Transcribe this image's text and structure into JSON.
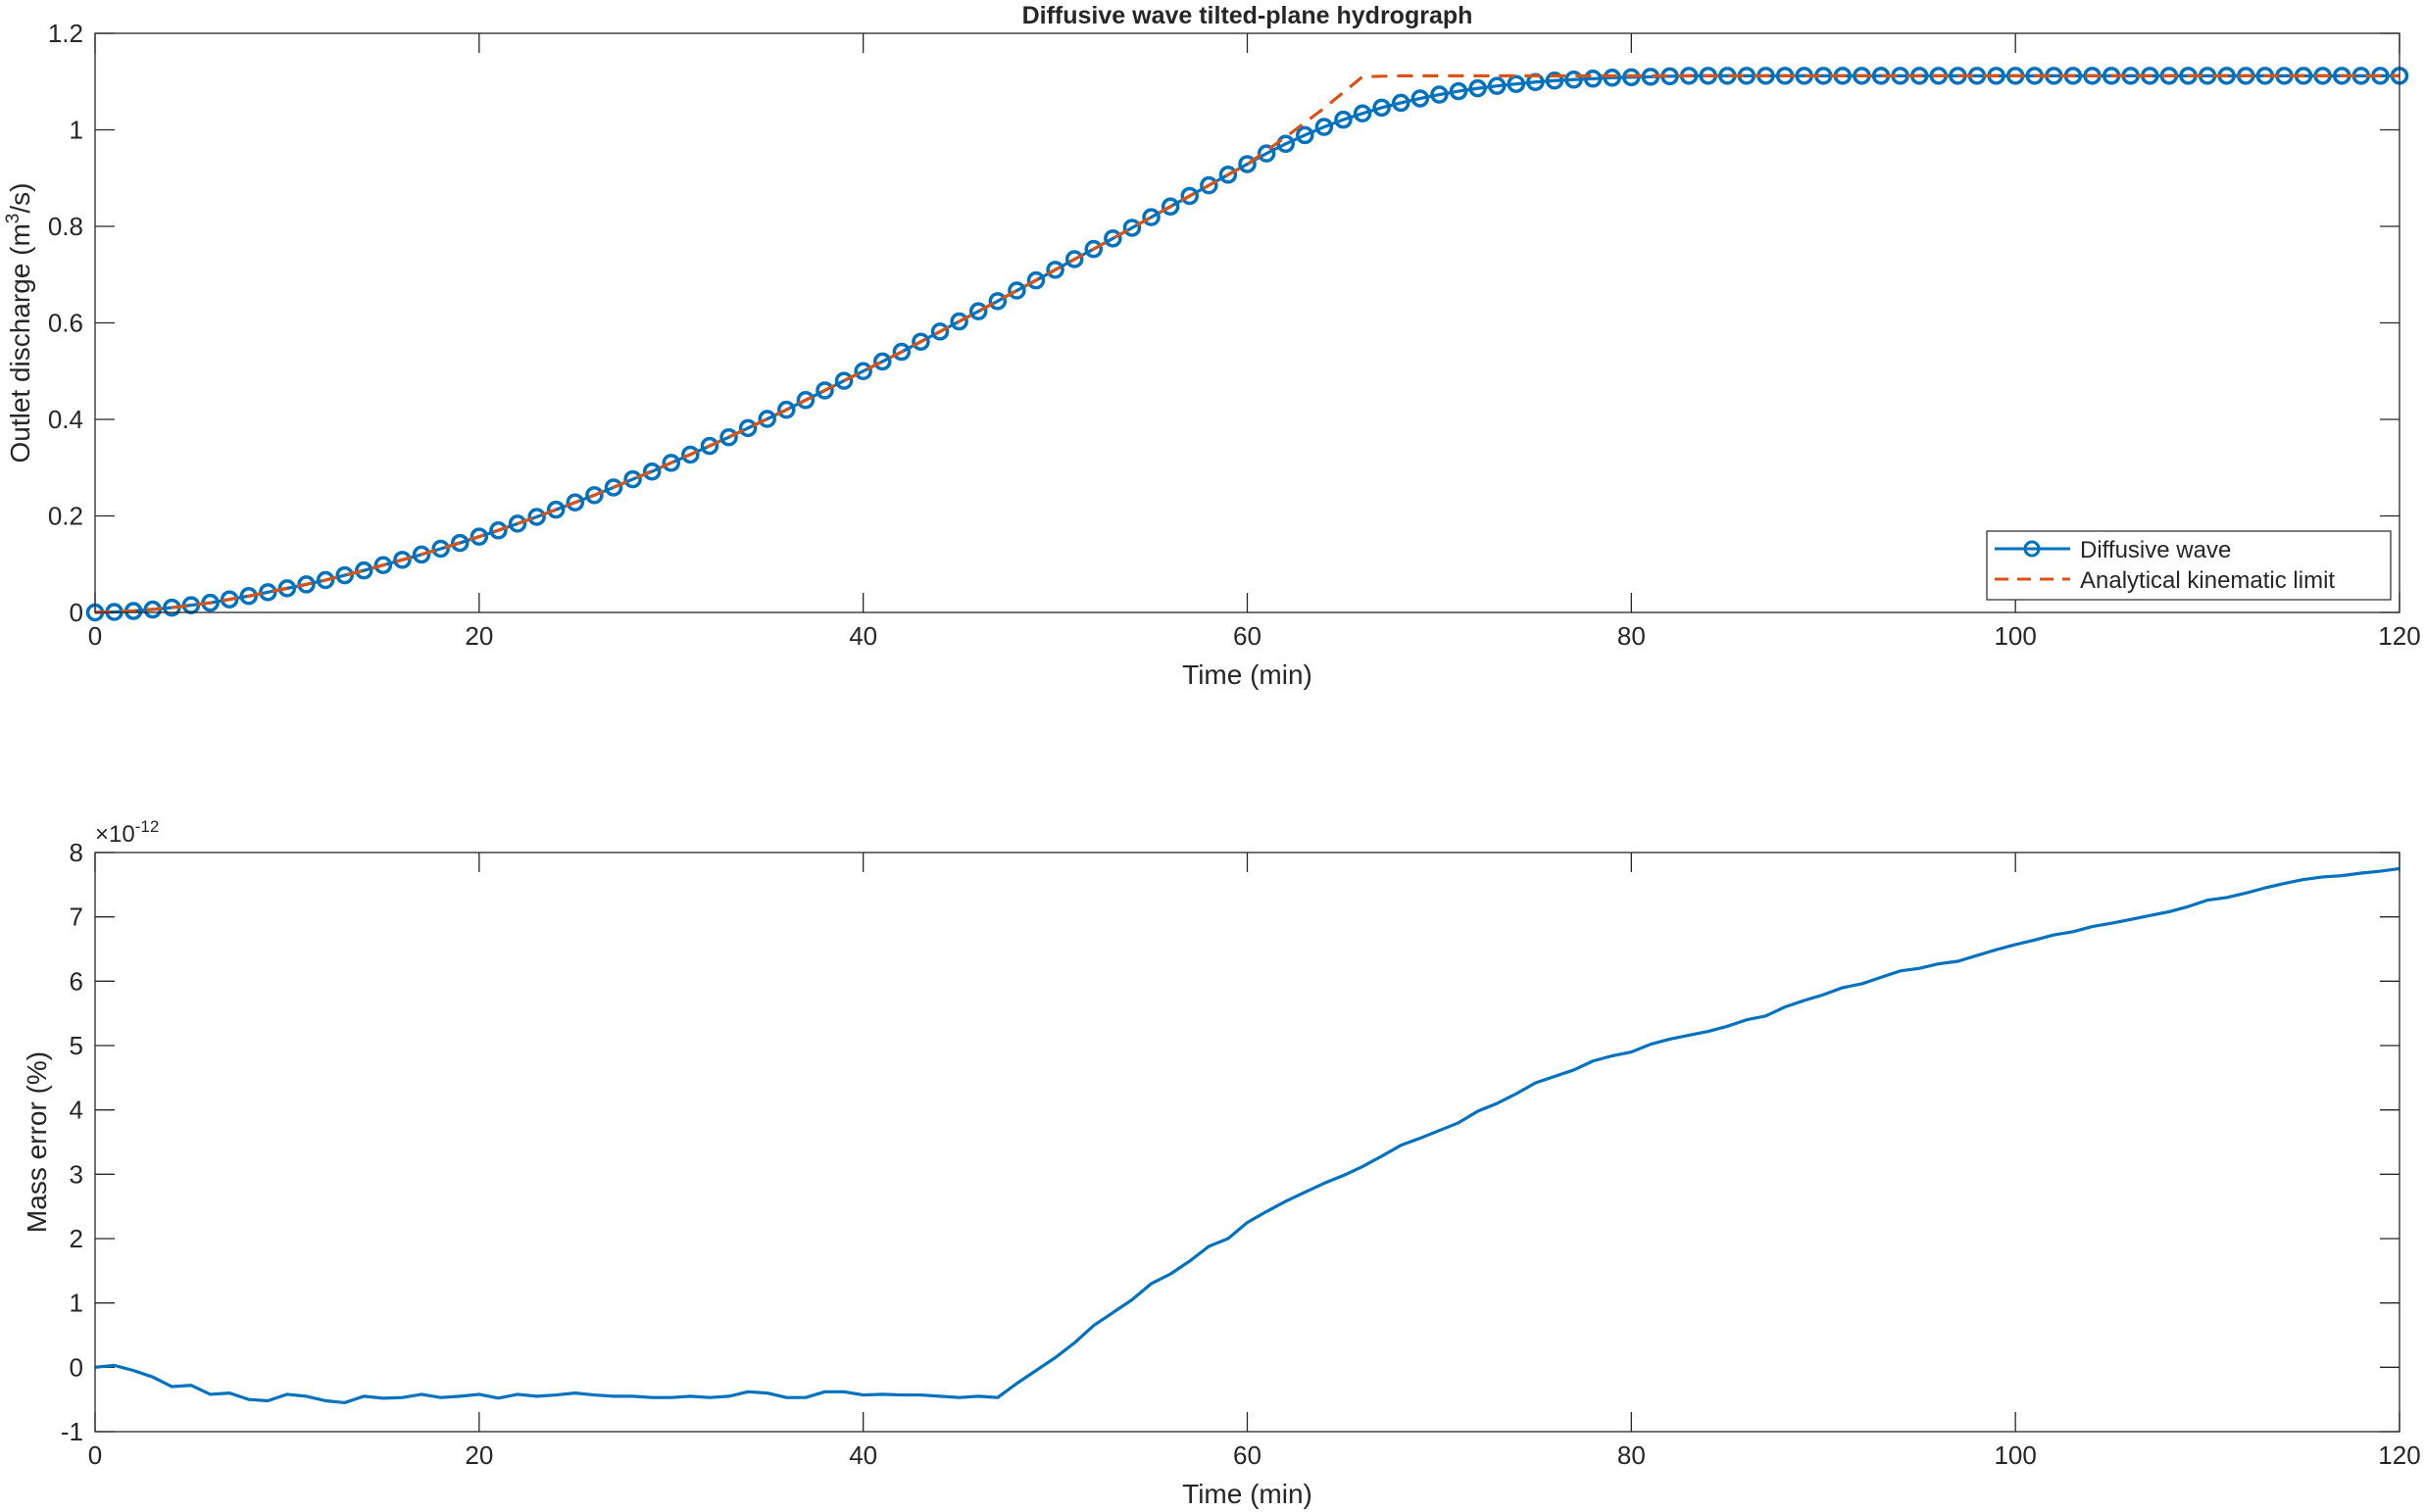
{
  "figure": {
    "colors": {
      "blue": "#0072BD",
      "orange": "#D95319",
      "axis": "#262626"
    }
  },
  "chart_data": [
    {
      "type": "line",
      "title": "Diffusive wave tilted-plane hydrograph",
      "xlabel": "Time (min)",
      "ylabel": "Outlet discharge (m³/s)",
      "ylabel_parts": {
        "pre": "Outlet discharge (m",
        "sup": "3",
        "post": "/s)"
      },
      "xlim": [
        0,
        120
      ],
      "ylim": [
        0,
        1.2
      ],
      "xticks": [
        0,
        20,
        40,
        60,
        80,
        100,
        120
      ],
      "yticks": [
        0,
        0.2,
        0.4,
        0.6,
        0.8,
        1,
        1.2
      ],
      "xtick_labels": [
        "0",
        "20",
        "40",
        "60",
        "80",
        "100",
        "120"
      ],
      "ytick_labels": [
        "0",
        "0.2",
        "0.4",
        "0.6",
        "0.8",
        "1",
        "1.2"
      ],
      "grid": false,
      "legend_position": "bottom-right",
      "series": [
        {
          "name": "Diffusive wave",
          "color": "#0072BD",
          "style": "solid-circle-markers",
          "x": [
            0,
            1,
            2,
            3,
            4,
            5,
            6,
            7,
            8,
            9,
            10,
            11,
            12,
            13,
            14,
            15,
            16,
            17,
            18,
            19,
            20,
            21,
            22,
            23,
            24,
            25,
            26,
            27,
            28,
            29,
            30,
            31,
            32,
            33,
            34,
            35,
            36,
            37,
            38,
            39,
            40,
            41,
            42,
            43,
            44,
            45,
            46,
            47,
            48,
            49,
            50,
            51,
            52,
            53,
            54,
            55,
            56,
            57,
            58,
            59,
            60,
            61,
            62,
            63,
            64,
            65,
            66,
            67,
            68,
            69,
            70,
            71,
            72,
            73,
            74,
            75,
            76,
            77,
            78,
            79,
            80,
            81,
            82,
            83,
            84,
            85,
            86,
            87,
            88,
            89,
            90,
            91,
            92,
            93,
            94,
            95,
            96,
            97,
            98,
            99,
            100,
            101,
            102,
            103,
            104,
            105,
            106,
            107,
            108,
            109,
            110,
            111,
            112,
            113,
            114,
            115,
            116,
            117,
            118,
            119,
            120
          ],
          "y": [
            0,
            0.001,
            0.003,
            0.006,
            0.01,
            0.015,
            0.02,
            0.027,
            0.034,
            0.042,
            0.05,
            0.058,
            0.067,
            0.077,
            0.087,
            0.098,
            0.109,
            0.12,
            0.132,
            0.144,
            0.157,
            0.17,
            0.184,
            0.198,
            0.213,
            0.228,
            0.243,
            0.259,
            0.276,
            0.292,
            0.31,
            0.327,
            0.345,
            0.363,
            0.382,
            0.401,
            0.42,
            0.44,
            0.46,
            0.48,
            0.5,
            0.52,
            0.54,
            0.561,
            0.582,
            0.603,
            0.624,
            0.645,
            0.667,
            0.688,
            0.71,
            0.732,
            0.753,
            0.775,
            0.797,
            0.819,
            0.841,
            0.863,
            0.885,
            0.907,
            0.929,
            0.951,
            0.971,
            0.989,
            1.006,
            1.021,
            1.034,
            1.046,
            1.056,
            1.065,
            1.073,
            1.08,
            1.086,
            1.091,
            1.095,
            1.099,
            1.102,
            1.104,
            1.106,
            1.108,
            1.109,
            1.11,
            1.111,
            1.112,
            1.112,
            1.112,
            1.112,
            1.112,
            1.112,
            1.112,
            1.112,
            1.112,
            1.112,
            1.112,
            1.112,
            1.112,
            1.112,
            1.112,
            1.112,
            1.112,
            1.112,
            1.112,
            1.112,
            1.112,
            1.112,
            1.112,
            1.112,
            1.112,
            1.112,
            1.112,
            1.112,
            1.112,
            1.112,
            1.112,
            1.112,
            1.112,
            1.112,
            1.112,
            1.112,
            1.112,
            1.112
          ]
        },
        {
          "name": "Analytical kinematic limit",
          "color": "#D95319",
          "style": "dashed",
          "x": [
            0,
            2,
            4,
            6,
            8,
            10,
            12,
            14,
            16,
            18,
            20,
            22,
            24,
            26,
            28,
            30,
            32,
            34,
            36,
            38,
            40,
            42,
            44,
            46,
            48,
            50,
            52,
            54,
            56,
            58,
            60,
            62,
            64,
            66,
            68,
            70,
            75,
            80,
            85,
            90,
            100,
            110,
            120
          ],
          "y": [
            0,
            0.003,
            0.01,
            0.02,
            0.034,
            0.05,
            0.067,
            0.087,
            0.109,
            0.132,
            0.157,
            0.184,
            0.213,
            0.243,
            0.276,
            0.31,
            0.345,
            0.382,
            0.42,
            0.46,
            0.5,
            0.54,
            0.582,
            0.624,
            0.667,
            0.71,
            0.753,
            0.797,
            0.841,
            0.885,
            0.929,
            0.985,
            1.045,
            1.11,
            1.112,
            1.112,
            1.112,
            1.112,
            1.112,
            1.112,
            1.112,
            1.112,
            1.112
          ]
        }
      ]
    },
    {
      "type": "line",
      "title": "",
      "xlabel": "Time (min)",
      "ylabel": "Mass error (%)",
      "exponent_label": {
        "base": "×10",
        "exp": "-12"
      },
      "xlim": [
        0,
        120
      ],
      "ylim": [
        -1,
        8
      ],
      "xticks": [
        0,
        20,
        40,
        60,
        80,
        100,
        120
      ],
      "yticks": [
        -1,
        0,
        1,
        2,
        3,
        4,
        5,
        6,
        7,
        8
      ],
      "xtick_labels": [
        "0",
        "20",
        "40",
        "60",
        "80",
        "100",
        "120"
      ],
      "ytick_labels": [
        "-1",
        "0",
        "1",
        "2",
        "3",
        "4",
        "5",
        "6",
        "7",
        "8"
      ],
      "grid": false,
      "series": [
        {
          "color": "#0072BD",
          "style": "solid",
          "x": [
            0,
            1,
            2,
            3,
            4,
            5,
            6,
            7,
            8,
            9,
            10,
            11,
            12,
            13,
            14,
            15,
            16,
            17,
            18,
            19,
            20,
            21,
            22,
            23,
            24,
            25,
            26,
            27,
            28,
            29,
            30,
            31,
            32,
            33,
            34,
            35,
            36,
            37,
            38,
            39,
            40,
            41,
            42,
            43,
            44,
            45,
            46,
            47,
            48,
            49,
            50,
            51,
            52,
            53,
            54,
            55,
            56,
            57,
            58,
            59,
            60,
            61,
            62,
            63,
            64,
            65,
            66,
            67,
            68,
            69,
            70,
            71,
            72,
            73,
            74,
            75,
            76,
            77,
            78,
            79,
            80,
            81,
            82,
            83,
            84,
            85,
            86,
            87,
            88,
            89,
            90,
            91,
            92,
            93,
            94,
            95,
            96,
            97,
            98,
            99,
            100,
            101,
            102,
            103,
            104,
            105,
            106,
            107,
            108,
            109,
            110,
            111,
            112,
            113,
            114,
            115,
            116,
            117,
            118,
            119,
            120
          ],
          "y": [
            0,
            0.03,
            -0.05,
            -0.15,
            -0.3,
            -0.28,
            -0.42,
            -0.4,
            -0.5,
            -0.52,
            -0.42,
            -0.45,
            -0.52,
            -0.55,
            -0.45,
            -0.48,
            -0.47,
            -0.42,
            -0.47,
            -0.45,
            -0.42,
            -0.48,
            -0.42,
            -0.45,
            -0.43,
            -0.4,
            -0.43,
            -0.45,
            -0.45,
            -0.47,
            -0.47,
            -0.45,
            -0.47,
            -0.45,
            -0.38,
            -0.4,
            -0.47,
            -0.47,
            -0.38,
            -0.38,
            -0.43,
            -0.42,
            -0.43,
            -0.43,
            -0.45,
            -0.47,
            -0.45,
            -0.47,
            -0.25,
            -0.05,
            0.15,
            0.38,
            0.65,
            0.85,
            1.05,
            1.3,
            1.45,
            1.65,
            1.88,
            2.0,
            2.25,
            2.42,
            2.58,
            2.72,
            2.86,
            2.98,
            3.12,
            3.28,
            3.45,
            3.56,
            3.68,
            3.8,
            3.98,
            4.1,
            4.25,
            4.42,
            4.52,
            4.62,
            4.76,
            4.84,
            4.9,
            5.02,
            5.1,
            5.16,
            5.22,
            5.3,
            5.4,
            5.46,
            5.6,
            5.7,
            5.79,
            5.9,
            5.96,
            6.06,
            6.16,
            6.2,
            6.27,
            6.31,
            6.4,
            6.49,
            6.57,
            6.64,
            6.72,
            6.77,
            6.85,
            6.9,
            6.96,
            7.02,
            7.08,
            7.16,
            7.26,
            7.3,
            7.37,
            7.45,
            7.52,
            7.58,
            7.62,
            7.64,
            7.68,
            7.71,
            7.75
          ]
        }
      ]
    }
  ]
}
